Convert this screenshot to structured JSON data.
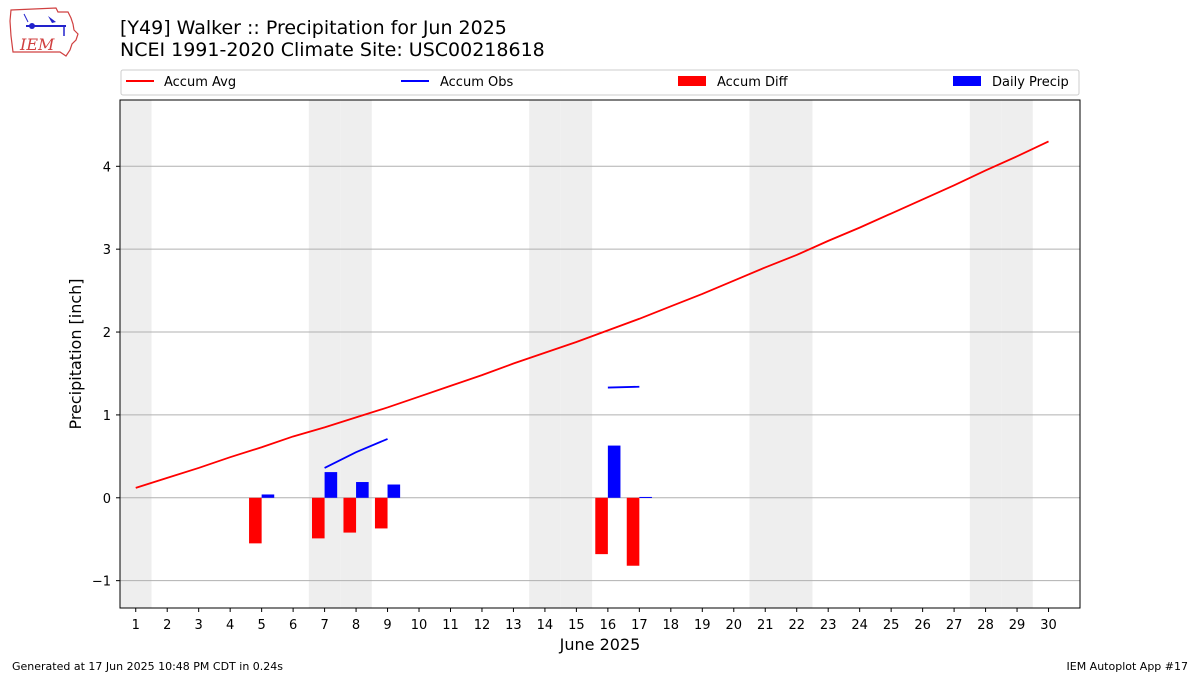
{
  "header": {
    "title_line1": "[Y49] Walker :: Precipitation for Jun 2025",
    "title_line2": "NCEI 1991-2020 Climate Site: USC00218618",
    "logo_text": "IEM"
  },
  "footer": {
    "generated": "Generated at 17 Jun 2025 10:48 PM CDT in 0.24s",
    "app": "IEM Autoplot App #17"
  },
  "colors": {
    "accum_avg": "#ff0000",
    "accum_obs": "#0000ff",
    "accum_diff": "#ff0000",
    "daily_precip": "#0000ff",
    "weekend_shade": "#eeeeee",
    "grid": "#b0b0b0"
  },
  "chart_data": {
    "type": "bar",
    "xlabel": "June 2025",
    "ylabel": "Precipitation [inch]",
    "xlim": [
      0.5,
      31
    ],
    "ylim": [
      -1.33,
      4.8
    ],
    "x": [
      1,
      2,
      3,
      4,
      5,
      6,
      7,
      8,
      9,
      10,
      11,
      12,
      13,
      14,
      15,
      16,
      17,
      18,
      19,
      20,
      21,
      22,
      23,
      24,
      25,
      26,
      27,
      28,
      29,
      30
    ],
    "xticks": [
      "1",
      "2",
      "3",
      "4",
      "5",
      "6",
      "7",
      "8",
      "9",
      "10",
      "11",
      "12",
      "13",
      "14",
      "15",
      "16",
      "17",
      "18",
      "19",
      "20",
      "21",
      "22",
      "23",
      "24",
      "25",
      "26",
      "27",
      "28",
      "29",
      "30"
    ],
    "yticks": [
      -1,
      0,
      1,
      2,
      3,
      4
    ],
    "ytick_labels": [
      "−1",
      "0",
      "1",
      "2",
      "3",
      "4"
    ],
    "grid": "horizontal",
    "legend": {
      "placement": "top",
      "ncol": 4
    },
    "weekend_days": [
      1,
      7,
      8,
      14,
      15,
      21,
      22,
      28,
      29
    ],
    "series": [
      {
        "name": "Accum Avg",
        "kind": "line",
        "x": [
          1,
          2,
          3,
          4,
          5,
          6,
          7,
          8,
          9,
          10,
          11,
          12,
          13,
          14,
          15,
          16,
          17,
          18,
          19,
          20,
          21,
          22,
          23,
          24,
          25,
          26,
          27,
          28,
          29,
          30
        ],
        "values": [
          0.12,
          0.24,
          0.36,
          0.49,
          0.61,
          0.74,
          0.85,
          0.97,
          1.09,
          1.22,
          1.35,
          1.48,
          1.62,
          1.75,
          1.88,
          2.02,
          2.16,
          2.31,
          2.46,
          2.62,
          2.78,
          2.93,
          3.1,
          3.26,
          3.43,
          3.6,
          3.77,
          3.95,
          4.12,
          4.3
        ]
      },
      {
        "name": "Accum Obs",
        "kind": "line",
        "segments": [
          {
            "x": [
              7,
              8,
              9
            ],
            "values": [
              0.36,
              0.55,
              0.71
            ]
          },
          {
            "x": [
              16,
              17
            ],
            "values": [
              1.33,
              1.34
            ]
          }
        ]
      },
      {
        "name": "Accum Diff",
        "kind": "bar",
        "x": [
          5,
          7,
          8,
          9,
          16,
          17
        ],
        "values": [
          -0.55,
          -0.49,
          -0.42,
          -0.37,
          -0.68,
          -0.82
        ]
      },
      {
        "name": "Daily Precip",
        "kind": "bar",
        "x": [
          5,
          7,
          8,
          9,
          16,
          17
        ],
        "values": [
          0.04,
          0.31,
          0.19,
          0.16,
          0.63,
          0.01
        ]
      }
    ]
  }
}
